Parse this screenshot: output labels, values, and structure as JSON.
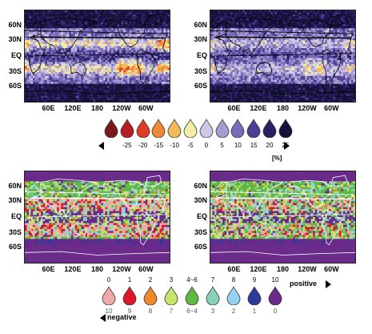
{
  "chart_data": {
    "type": "heatmap",
    "panels": [
      {
        "id": "top-left",
        "field": "percent"
      },
      {
        "id": "top-right",
        "field": "percent"
      },
      {
        "id": "bottom-left",
        "field": "sign_count"
      },
      {
        "id": "bottom-right",
        "field": "sign_count"
      }
    ],
    "y_ticks": [
      "60N",
      "30N",
      "EQ",
      "30S",
      "60S"
    ],
    "x_ticks": [
      "60E",
      "120E",
      "180",
      "120W",
      "60W"
    ],
    "percent_legend": {
      "values": [
        "-25",
        "-20",
        "-15",
        "-10",
        "-5",
        "0",
        "5",
        "10",
        "15",
        "20",
        "25"
      ],
      "colors": [
        "#7a1a1a",
        "#b51f24",
        "#e03c28",
        "#f0883a",
        "#f4b95a",
        "#f3eea6",
        "#cfc8e6",
        "#a79bd0",
        "#7a6cb8",
        "#4c3f96",
        "#2a1f66",
        "#141238"
      ],
      "unit": "[%]"
    },
    "count_legend": {
      "top_values": [
        "0",
        "1",
        "2",
        "3",
        "4~6",
        "7",
        "8",
        "9",
        "10"
      ],
      "bottom_values": [
        "10",
        "9",
        "8",
        "7",
        "6~4",
        "3",
        "2",
        "1",
        "0"
      ],
      "colors": [
        "#f0a9a9",
        "#e0152a",
        "#ee8a2a",
        "#c9e46a",
        "#5eb842",
        "#86d2b8",
        "#95d2f0",
        "#2e3a9a",
        "#6a2a8a"
      ],
      "left_word": "negative",
      "right_word": "positive"
    }
  }
}
